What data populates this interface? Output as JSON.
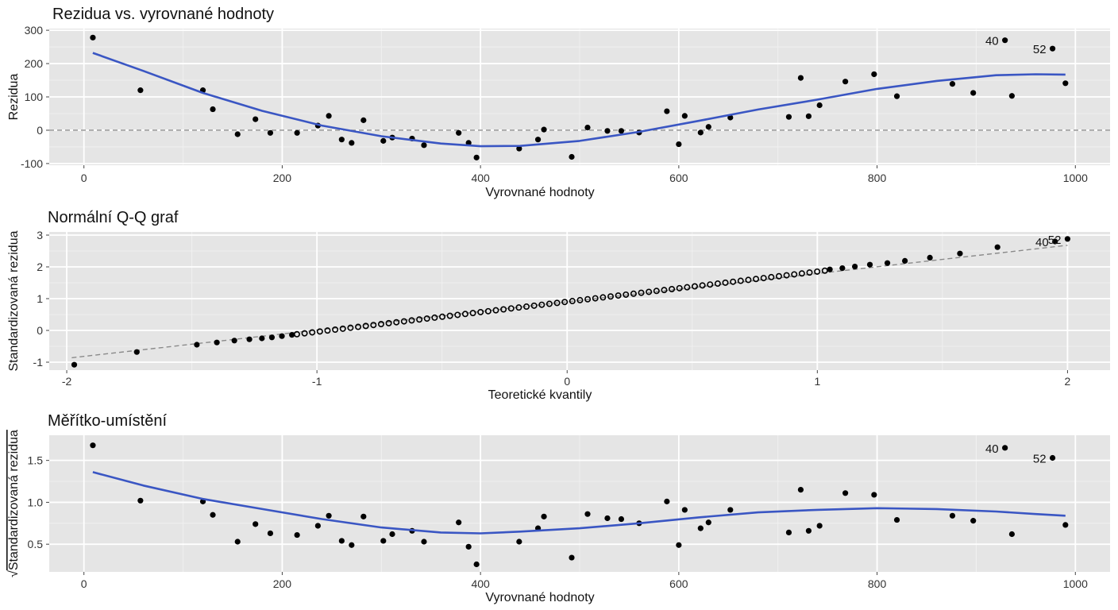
{
  "colors": {
    "panel": "#e5e5e5",
    "grid_major": "#ffffff",
    "grid_minor": "#f0f0f0",
    "point": "#000000",
    "smooth": "#3a56c3",
    "reference": "#8a8a8a"
  },
  "chart_data": [
    {
      "type": "scatter",
      "title": "Rezidua vs. vyrovnané hodnoty",
      "xlabel": "Vyrovnané hodnoty",
      "ylabel": "Rezidua",
      "xlim": [
        -35,
        1035
      ],
      "ylim": [
        -105,
        305
      ],
      "xticks": [
        0,
        200,
        400,
        600,
        800,
        1000
      ],
      "yticks": [
        -100,
        0,
        100,
        200,
        300
      ],
      "xtick_labels": [
        "0",
        "200",
        "400",
        "600",
        "800",
        "1000"
      ],
      "ytick_labels": [
        "-100",
        "0",
        "100",
        "200",
        "300"
      ],
      "grid": true,
      "reference_line": {
        "style": "dashed",
        "y": 0
      },
      "points": [
        [
          9,
          278
        ],
        [
          57,
          120
        ],
        [
          120,
          120
        ],
        [
          130,
          63
        ],
        [
          155,
          -12
        ],
        [
          173,
          33
        ],
        [
          188,
          -8
        ],
        [
          215,
          -8
        ],
        [
          236,
          14
        ],
        [
          247,
          43
        ],
        [
          260,
          -28
        ],
        [
          270,
          -38
        ],
        [
          282,
          30
        ],
        [
          302,
          -32
        ],
        [
          311,
          -22
        ],
        [
          331,
          -25
        ],
        [
          343,
          -45
        ],
        [
          378,
          -8
        ],
        [
          388,
          -38
        ],
        [
          396,
          -82
        ],
        [
          439,
          -55
        ],
        [
          458,
          -28
        ],
        [
          464,
          2
        ],
        [
          492,
          -80
        ],
        [
          508,
          8
        ],
        [
          528,
          -2
        ],
        [
          542,
          -2
        ],
        [
          560,
          -7
        ],
        [
          588,
          57
        ],
        [
          600,
          -42
        ],
        [
          606,
          43
        ],
        [
          622,
          -7
        ],
        [
          630,
          10
        ],
        [
          652,
          38
        ],
        [
          711,
          40
        ],
        [
          723,
          157
        ],
        [
          731,
          42
        ],
        [
          742,
          75
        ],
        [
          768,
          146
        ],
        [
          797,
          168
        ],
        [
          820,
          102
        ],
        [
          876,
          139
        ],
        [
          897,
          112
        ],
        [
          929,
          270
        ],
        [
          936,
          103
        ],
        [
          977,
          245
        ],
        [
          990,
          141
        ]
      ],
      "smooth": [
        [
          9,
          232
        ],
        [
          60,
          178
        ],
        [
          120,
          112
        ],
        [
          180,
          58
        ],
        [
          240,
          14
        ],
        [
          300,
          -18
        ],
        [
          360,
          -40
        ],
        [
          400,
          -48
        ],
        [
          440,
          -47
        ],
        [
          500,
          -32
        ],
        [
          560,
          -5
        ],
        [
          620,
          28
        ],
        [
          680,
          62
        ],
        [
          740,
          92
        ],
        [
          800,
          124
        ],
        [
          860,
          148
        ],
        [
          920,
          165
        ],
        [
          960,
          168
        ],
        [
          990,
          167
        ]
      ],
      "annotations": [
        {
          "label": "40",
          "x": 929,
          "y": 270
        },
        {
          "label": "52",
          "x": 977,
          "y": 245
        }
      ]
    },
    {
      "type": "scatter",
      "title": "Normální Q-Q graf",
      "xlabel": "Teoretické kvantily",
      "ylabel": "Standardizovaná rezidua",
      "xlim": [
        -2.07,
        2.17
      ],
      "ylim": [
        -1.25,
        3.1
      ],
      "xticks": [
        -2,
        -1,
        0,
        1,
        2
      ],
      "yticks": [
        -1,
        0,
        1,
        2,
        3
      ],
      "xtick_labels": [
        "-2",
        "-1",
        "0",
        "1",
        "2"
      ],
      "ytick_labels": [
        "-1",
        "0",
        "1",
        "2",
        "3"
      ],
      "grid": true,
      "reference_line": {
        "style": "dashed",
        "from": [
          -1.98,
          -0.86
        ],
        "to": [
          2.0,
          2.68
        ]
      },
      "points": [
        [
          -1.97,
          -1.08
        ],
        [
          -1.72,
          -0.68
        ],
        [
          -1.48,
          -0.45
        ],
        [
          -1.4,
          -0.38
        ],
        [
          -1.33,
          -0.32
        ],
        [
          -1.27,
          -0.28
        ],
        [
          -1.22,
          -0.25
        ],
        [
          -1.18,
          -0.22
        ],
        [
          -1.14,
          -0.18
        ],
        [
          -1.1,
          -0.14
        ],
        [
          1.05,
          1.92
        ],
        [
          1.1,
          1.96
        ],
        [
          1.15,
          2.01
        ],
        [
          1.21,
          2.07
        ],
        [
          1.28,
          2.12
        ],
        [
          1.35,
          2.19
        ],
        [
          1.45,
          2.29
        ],
        [
          1.57,
          2.42
        ],
        [
          1.72,
          2.62
        ],
        [
          1.95,
          2.8
        ],
        [
          2.0,
          2.88
        ]
      ],
      "dense_band": {
        "from": [
          -1.08,
          -0.12
        ],
        "to": [
          1.03,
          1.88
        ],
        "count": 70
      },
      "annotations": [
        {
          "label": "40",
          "x": 1.95,
          "y": 2.8
        },
        {
          "label": "52",
          "x": 2.0,
          "y": 2.88
        }
      ]
    },
    {
      "type": "scatter",
      "title": "Měřítko-umístění",
      "xlabel": "Vyrovnané hodnoty",
      "ylabel": "Standardizovaná rezidua",
      "ylabel_prefix": "√",
      "xlim": [
        -35,
        1035
      ],
      "ylim": [
        0.17,
        1.8
      ],
      "xticks": [
        0,
        200,
        400,
        600,
        800,
        1000
      ],
      "yticks": [
        0.5,
        1.0,
        1.5
      ],
      "xtick_labels": [
        "0",
        "200",
        "400",
        "600",
        "800",
        "1000"
      ],
      "ytick_labels": [
        "0.5",
        "1.0",
        "1.5"
      ],
      "grid": true,
      "points": [
        [
          9,
          1.68
        ],
        [
          57,
          1.02
        ],
        [
          120,
          1.01
        ],
        [
          130,
          0.85
        ],
        [
          155,
          0.53
        ],
        [
          173,
          0.74
        ],
        [
          188,
          0.63
        ],
        [
          215,
          0.61
        ],
        [
          236,
          0.72
        ],
        [
          247,
          0.84
        ],
        [
          260,
          0.54
        ],
        [
          270,
          0.49
        ],
        [
          282,
          0.83
        ],
        [
          302,
          0.54
        ],
        [
          311,
          0.62
        ],
        [
          331,
          0.66
        ],
        [
          343,
          0.53
        ],
        [
          378,
          0.76
        ],
        [
          388,
          0.47
        ],
        [
          396,
          0.26
        ],
        [
          439,
          0.53
        ],
        [
          458,
          0.69
        ],
        [
          464,
          0.83
        ],
        [
          492,
          0.34
        ],
        [
          508,
          0.86
        ],
        [
          528,
          0.81
        ],
        [
          542,
          0.8
        ],
        [
          560,
          0.75
        ],
        [
          588,
          1.01
        ],
        [
          600,
          0.49
        ],
        [
          606,
          0.91
        ],
        [
          622,
          0.69
        ],
        [
          630,
          0.76
        ],
        [
          652,
          0.91
        ],
        [
          711,
          0.64
        ],
        [
          723,
          1.15
        ],
        [
          731,
          0.66
        ],
        [
          742,
          0.72
        ],
        [
          768,
          1.11
        ],
        [
          797,
          1.09
        ],
        [
          820,
          0.79
        ],
        [
          876,
          0.84
        ],
        [
          897,
          0.78
        ],
        [
          929,
          1.65
        ],
        [
          936,
          0.62
        ],
        [
          977,
          1.53
        ],
        [
          990,
          0.73
        ]
      ],
      "smooth": [
        [
          9,
          1.36
        ],
        [
          60,
          1.2
        ],
        [
          120,
          1.04
        ],
        [
          180,
          0.92
        ],
        [
          240,
          0.8
        ],
        [
          300,
          0.7
        ],
        [
          360,
          0.64
        ],
        [
          400,
          0.63
        ],
        [
          440,
          0.65
        ],
        [
          500,
          0.69
        ],
        [
          560,
          0.75
        ],
        [
          620,
          0.82
        ],
        [
          680,
          0.88
        ],
        [
          740,
          0.91
        ],
        [
          800,
          0.93
        ],
        [
          860,
          0.92
        ],
        [
          920,
          0.89
        ],
        [
          960,
          0.86
        ],
        [
          990,
          0.84
        ]
      ],
      "annotations": [
        {
          "label": "40",
          "x": 929,
          "y": 1.65
        },
        {
          "label": "52",
          "x": 977,
          "y": 1.53
        }
      ]
    }
  ]
}
